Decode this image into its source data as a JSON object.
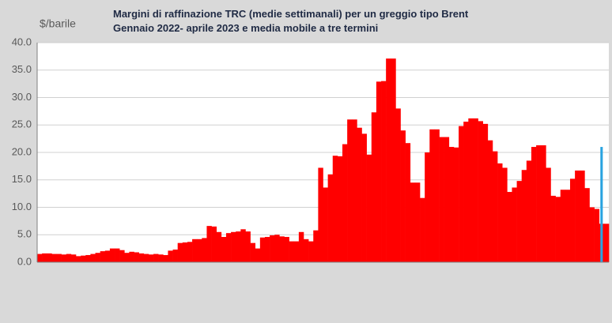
{
  "chart_data": {
    "type": "bar",
    "title": "Margini di raffinazione TRC (medie settimanali)  per un greggio tipo Brent",
    "subtitle": "Gennaio 2022- aprile 2023 e  media mobile a tre termini",
    "y_label": "$/barile",
    "categories": [
      null,
      null,
      null,
      null,
      null,
      null,
      null,
      null,
      null,
      null,
      null,
      null,
      null,
      null,
      null,
      null,
      null,
      null,
      null,
      null,
      null,
      null,
      null,
      null,
      null,
      null,
      null,
      null,
      null,
      null,
      null,
      null,
      null,
      null,
      null,
      null,
      null,
      null,
      null,
      null,
      null,
      null,
      null,
      null,
      null,
      null,
      null,
      null,
      null,
      null,
      null,
      null,
      null,
      null,
      null,
      null,
      null,
      null,
      null,
      null,
      null,
      null,
      null,
      null,
      null,
      null,
      null,
      null,
      null,
      null,
      null,
      null,
      null,
      null,
      null,
      null,
      null,
      null,
      null,
      null,
      null,
      null,
      null,
      null,
      null,
      null,
      null,
      null,
      null,
      null,
      null,
      null,
      null,
      null,
      null,
      null,
      null,
      null,
      null,
      null,
      null,
      null,
      null,
      null,
      null,
      null,
      null,
      null,
      null,
      null,
      null,
      null,
      null,
      null,
      null,
      null,
      null,
      null
    ],
    "series": [
      {
        "color": "#ff0000",
        "values": [
          1.5,
          1.6,
          1.6,
          1.5,
          1.5,
          1.4,
          1.5,
          1.4,
          1.1,
          1.2,
          1.3,
          1.5,
          1.7,
          2.0,
          2.1,
          2.5,
          2.5,
          2.2,
          1.7,
          1.9,
          1.8,
          1.6,
          1.5,
          1.4,
          1.5,
          1.4,
          1.3,
          2.1,
          2.3,
          3.5,
          3.6,
          3.7,
          4.2,
          4.2,
          4.4,
          6.6,
          6.5,
          5.5,
          4.6,
          5.3,
          5.5,
          5.6,
          6.0,
          5.6,
          3.5,
          2.5,
          4.5,
          4.6,
          4.9,
          5.0,
          4.7,
          4.6,
          3.8,
          3.8,
          5.5,
          4.2,
          3.8,
          5.8,
          17.2,
          13.6,
          16.0,
          19.4,
          19.3,
          21.5,
          26.0,
          26.0,
          24.5,
          23.4,
          19.6,
          27.3,
          32.9,
          33.0,
          37.1,
          37.1,
          28.0,
          24.0,
          21.7,
          14.5,
          14.5,
          11.7,
          20.0,
          24.2,
          24.2,
          22.8,
          22.8,
          21.0,
          20.9,
          24.8,
          25.6,
          26.2,
          26.2,
          25.7,
          25.2,
          22.2,
          20.2,
          18.0,
          17.2,
          12.8,
          13.6,
          14.8,
          16.8,
          18.5,
          21.0,
          21.3,
          21.3,
          17.2,
          12.1,
          11.9,
          13.2,
          13.2,
          15.2,
          16.7,
          16.7,
          13.5,
          10.0,
          9.7,
          7.0,
          7.0
        ]
      },
      {
        "color": "#29a3e0",
        "values": [
          null,
          null,
          null,
          null,
          null,
          null,
          null,
          null,
          null,
          null,
          null,
          null,
          null,
          null,
          null,
          null,
          null,
          null,
          null,
          null,
          null,
          null,
          null,
          null,
          null,
          null,
          null,
          null,
          null,
          null,
          null,
          null,
          null,
          null,
          null,
          null,
          null,
          null,
          null,
          null,
          null,
          null,
          null,
          null,
          null,
          null,
          null,
          null,
          null,
          null,
          null,
          null,
          null,
          null,
          null,
          null,
          null,
          null,
          null,
          null,
          null,
          null,
          null,
          null,
          null,
          null,
          null,
          null,
          null,
          null,
          null,
          null,
          null,
          null,
          null,
          null,
          null,
          null,
          null,
          null,
          null,
          null,
          null,
          null,
          null,
          null,
          null,
          null,
          null,
          null,
          null,
          null,
          null,
          null,
          null,
          null,
          null,
          null,
          null,
          null,
          null,
          null,
          null,
          null,
          null,
          null,
          null,
          null,
          null,
          null,
          null,
          null,
          null,
          null,
          null,
          null,
          21.0,
          null
        ]
      }
    ],
    "ylim": [
      0,
      40
    ],
    "yticks": [
      {
        "value": 0,
        "label": "0.0"
      },
      {
        "value": 5,
        "label": "5.0"
      },
      {
        "value": 10,
        "label": "10.0"
      },
      {
        "value": 15,
        "label": "15.0"
      },
      {
        "value": 20,
        "label": "20.0"
      },
      {
        "value": 25,
        "label": "25.0"
      },
      {
        "value": 30,
        "label": "30.0"
      },
      {
        "value": 35,
        "label": "35.0"
      },
      {
        "value": 40,
        "label": "40.0"
      }
    ],
    "grid": true
  }
}
